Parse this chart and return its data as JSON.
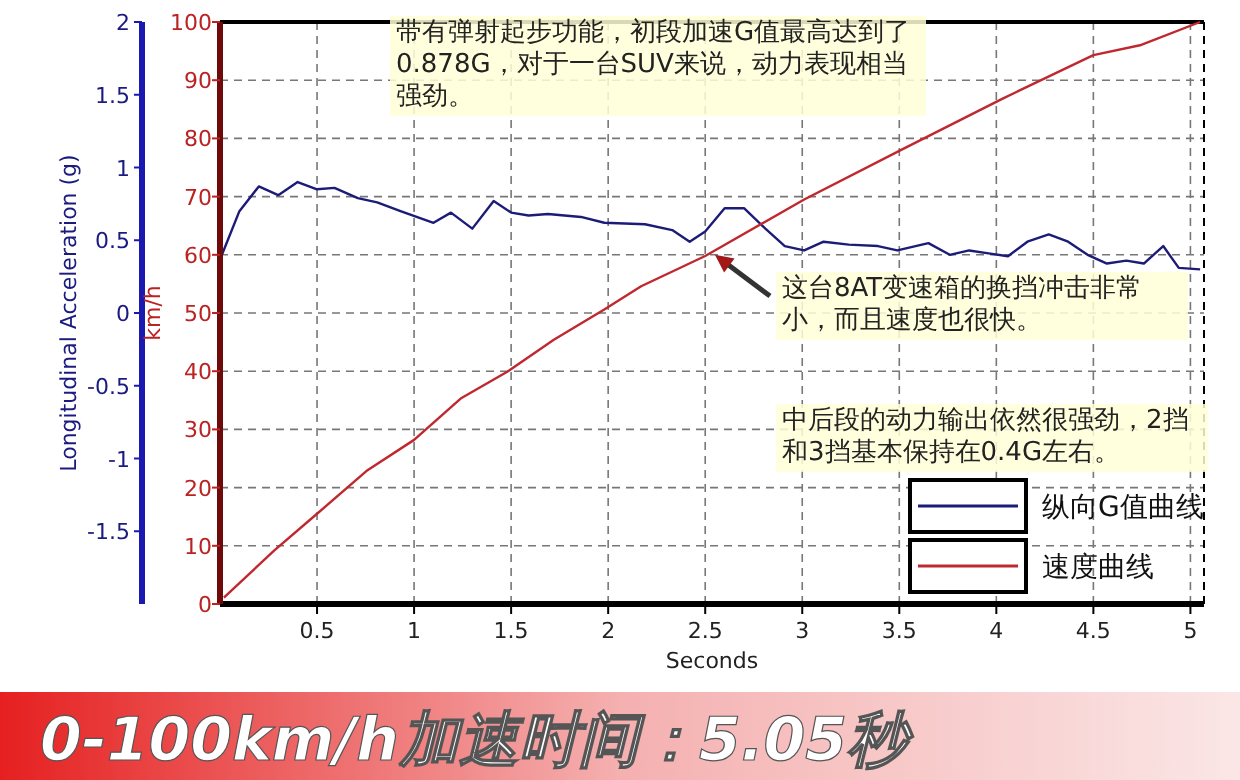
{
  "chart_data": {
    "type": "line",
    "title": "0-100km/h加速时间：5.05秒",
    "xlabel": "Seconds",
    "ylabel": "km/h",
    "y2label": "Longitudinal Acceleration (g)",
    "xlim": [
      0,
      5.07
    ],
    "xticks": [
      0.5,
      1,
      1.5,
      2,
      2.5,
      3,
      3.5,
      4,
      4.5,
      5
    ],
    "ylim": [
      0,
      100
    ],
    "yticks": [
      0,
      10,
      20,
      30,
      40,
      50,
      60,
      70,
      80,
      90,
      100
    ],
    "y2lim": [
      -2,
      2
    ],
    "y2ticks": [
      -1.5,
      -1,
      -0.5,
      0,
      0.5,
      1,
      1.5,
      2
    ],
    "grid": true,
    "legend": "bottom right",
    "series": [
      {
        "name": "纵向G值曲线",
        "color": "#1c1c78",
        "axis": "y2",
        "x": [
          0.01,
          0.1,
          0.2,
          0.3,
          0.4,
          0.5,
          0.59,
          0.71,
          0.81,
          0.93,
          1.1,
          1.19,
          1.3,
          1.41,
          1.5,
          1.59,
          1.69,
          1.86,
          1.98,
          2.19,
          2.33,
          2.42,
          2.5,
          2.6,
          2.7,
          2.81,
          2.91,
          3.01,
          3.11,
          3.24,
          3.39,
          3.49,
          3.65,
          3.76,
          3.86,
          3.96,
          4.06,
          4.16,
          4.27,
          4.37,
          4.47,
          4.57,
          4.67,
          4.76,
          4.86,
          4.94,
          5.05
        ],
        "values": [
          0.4,
          0.7,
          0.87,
          0.81,
          0.9,
          0.85,
          0.86,
          0.79,
          0.76,
          0.7,
          0.62,
          0.69,
          0.58,
          0.77,
          0.69,
          0.67,
          0.68,
          0.66,
          0.62,
          0.61,
          0.57,
          0.49,
          0.56,
          0.72,
          0.72,
          0.58,
          0.46,
          0.43,
          0.49,
          0.47,
          0.46,
          0.43,
          0.48,
          0.4,
          0.43,
          0.41,
          0.39,
          0.49,
          0.54,
          0.49,
          0.4,
          0.34,
          0.36,
          0.34,
          0.46,
          0.31,
          0.3
        ]
      },
      {
        "name": "速度曲线",
        "color": "#c0282f",
        "x": [
          0.02,
          0.28,
          0.5,
          0.76,
          1.0,
          1.24,
          1.48,
          1.72,
          1.98,
          2.17,
          2.5,
          3.01,
          3.52,
          4.03,
          4.5,
          4.74,
          5.05
        ],
        "values": [
          1.1,
          9.2,
          15.5,
          23,
          28.2,
          35.3,
          39.9,
          45.4,
          50.6,
          54.6,
          59.8,
          69.5,
          78.2,
          86.8,
          94.3,
          96,
          100
        ]
      }
    ],
    "annotations": [
      "带有弹射起步功能，初段加速G值最高达到了0.878G，对于一台SUV来说，动力表现相当强劲。",
      {
        "text": "这台8AT变速箱的换挡冲击非常小，而且速度也很快。",
        "x": 2.55,
        "y": 60
      },
      "中后段的动力输出依然很强劲，2挡和3挡基本保持在0.4G左右。"
    ]
  }
}
